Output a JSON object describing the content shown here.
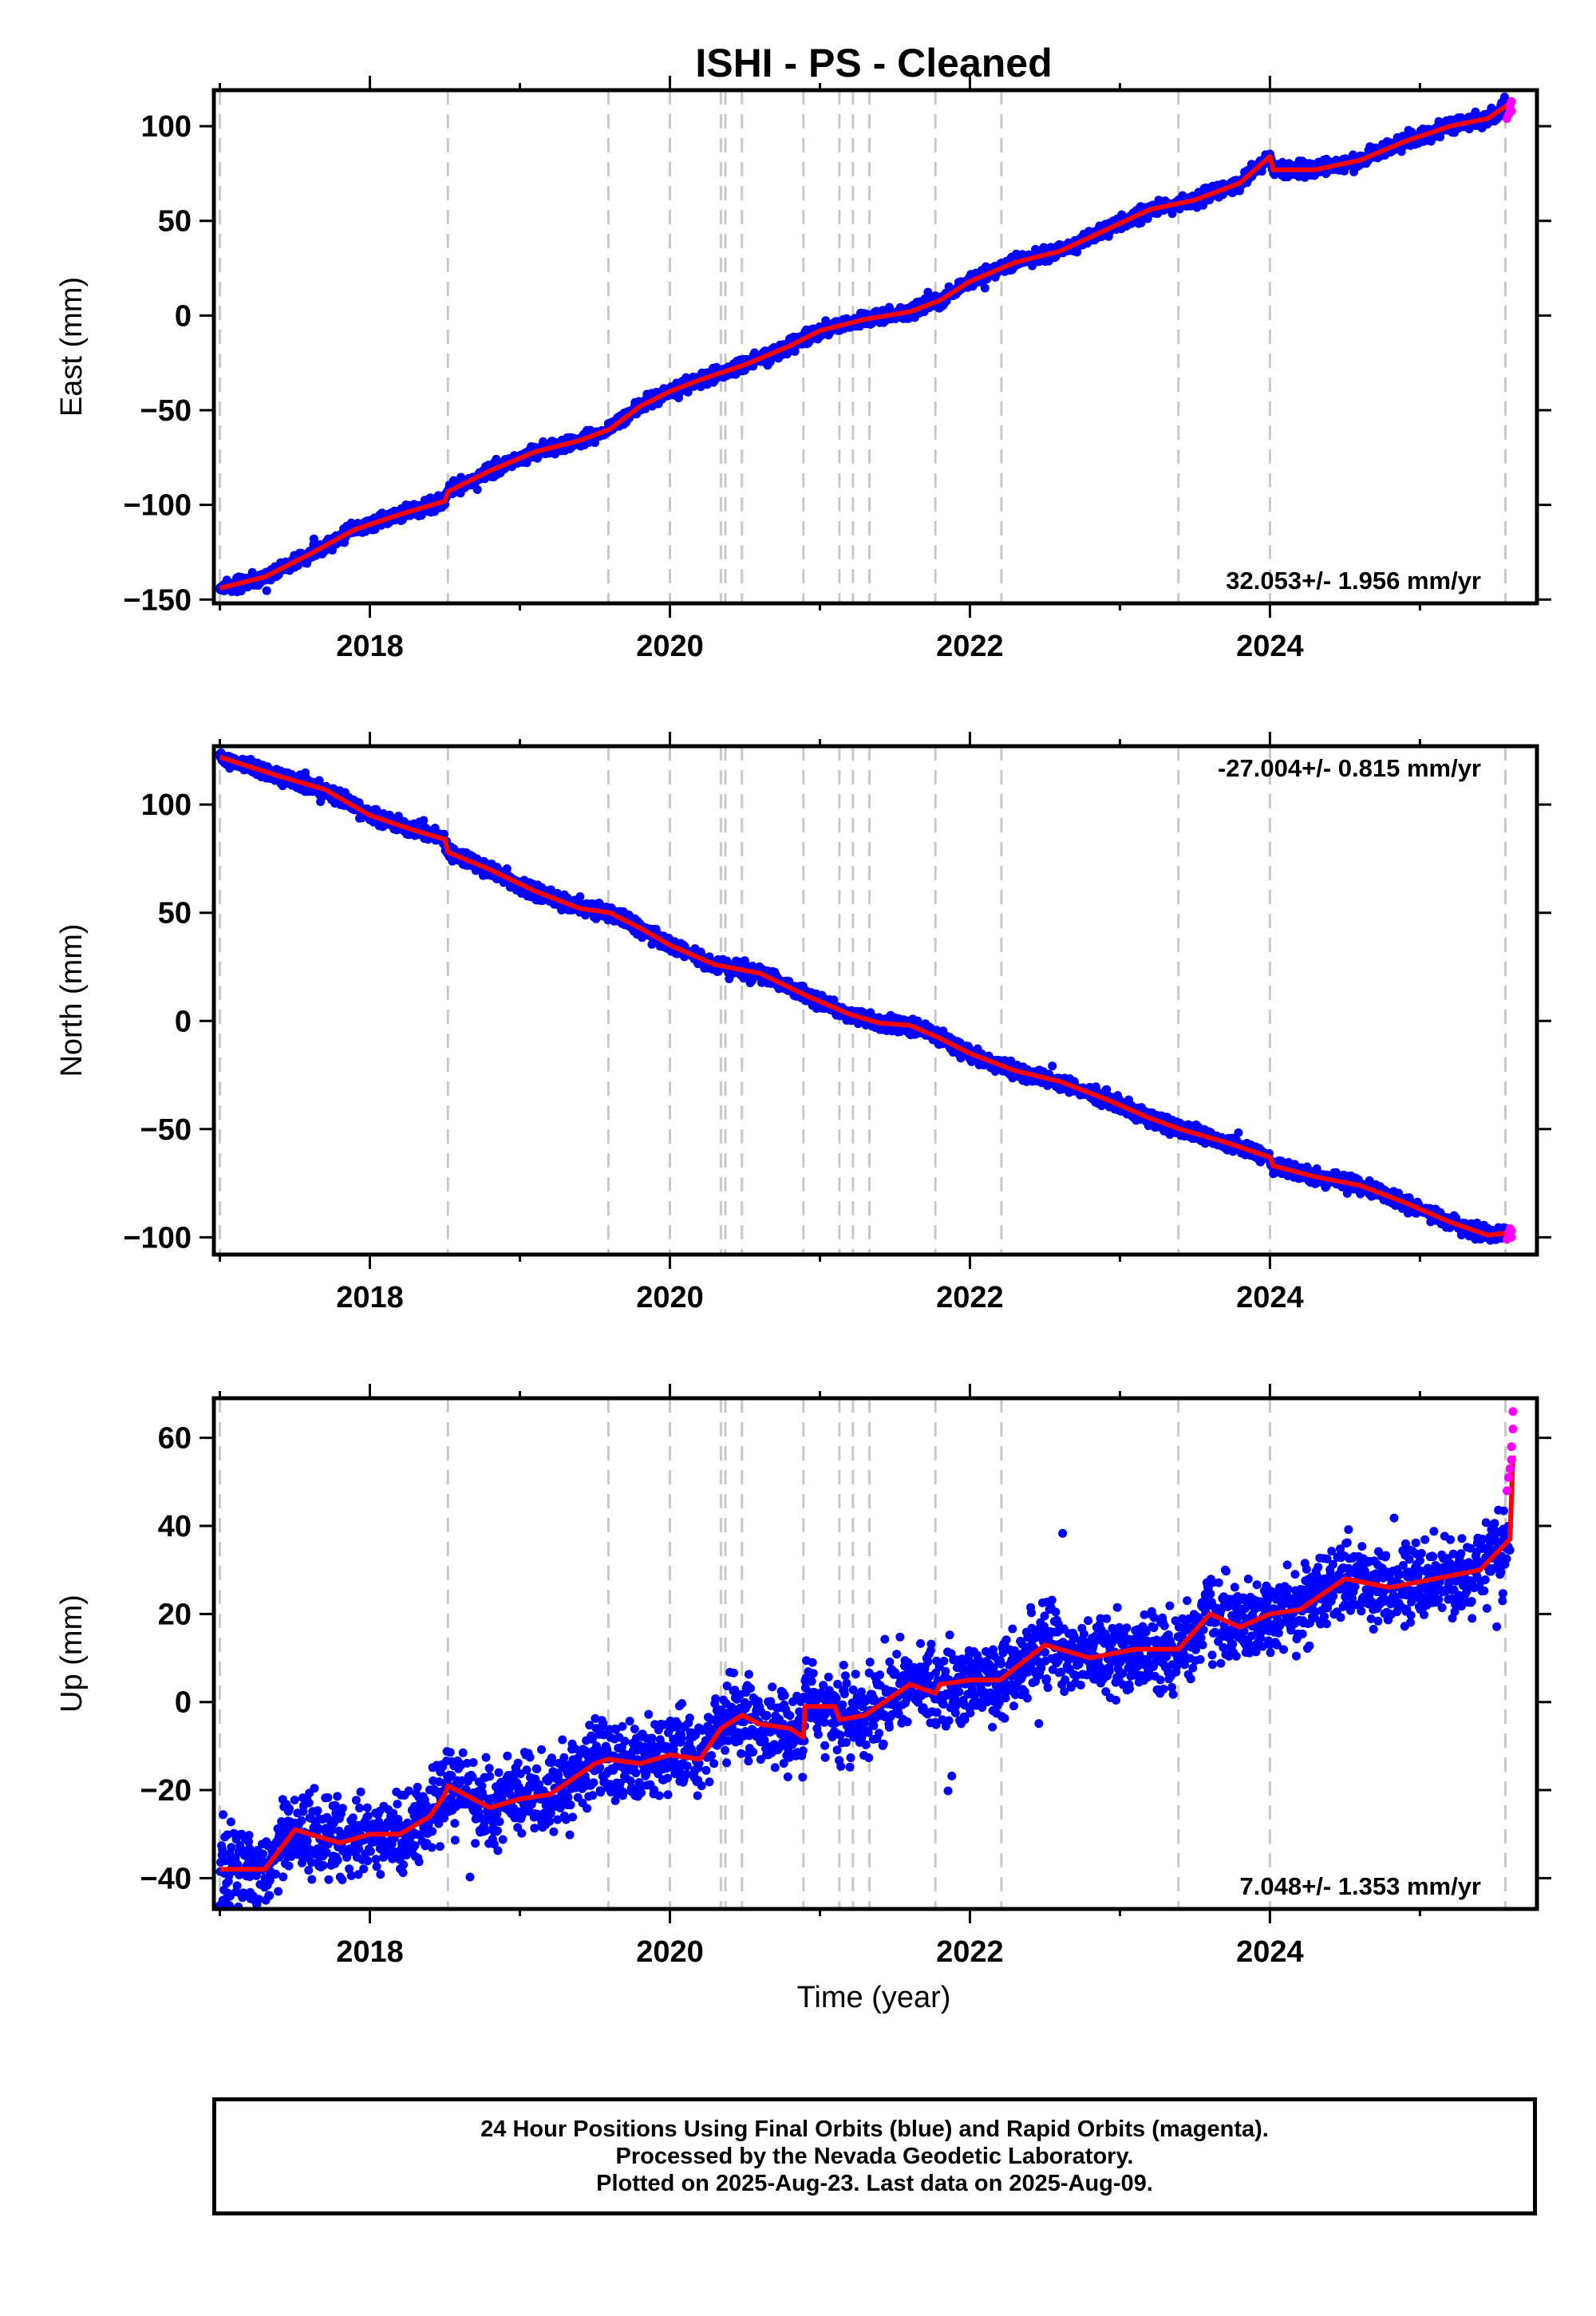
{
  "title": "ISHI  - PS - Cleaned",
  "xlabel": "Time (year)",
  "colors": {
    "final_orbits": "#0000ff",
    "rapid_orbits": "#ff00ff",
    "model_fit": "#ff0000",
    "event_lines": "#c8c8c8"
  },
  "footer": {
    "line1": "24 Hour Positions Using Final Orbits (blue) and Rapid Orbits (magenta).",
    "line2": "Processed by the Nevada Geodetic Laboratory.",
    "line3": "Plotted on 2025-Aug-23. Last data on 2025-Aug-09."
  },
  "chart_data": [
    {
      "type": "scatter",
      "component": "East",
      "ylabel": "East (mm)",
      "velocity_label": "32.053+/- 1.956 mm/yr",
      "velocity_label_position": "bottom-right",
      "xlim": [
        2016.96,
        2025.78
      ],
      "ylim": [
        -152,
        119
      ],
      "xticks": [
        2018,
        2020,
        2022,
        2024
      ],
      "yticks": [
        -150,
        -100,
        -50,
        0,
        50,
        100
      ],
      "event_lines": [
        2017.0,
        2018.52,
        2019.59,
        2020.0,
        2020.34,
        2020.37,
        2020.48,
        2020.89,
        2021.13,
        2021.22,
        2021.33,
        2021.77,
        2022.21,
        2023.39,
        2024.0,
        2025.57
      ],
      "fit_points": [
        [
          2017.0,
          -144
        ],
        [
          2017.3,
          -138
        ],
        [
          2017.6,
          -126
        ],
        [
          2017.9,
          -113
        ],
        [
          2018.2,
          -105
        ],
        [
          2018.5,
          -98
        ],
        [
          2018.52,
          -93
        ],
        [
          2018.8,
          -82
        ],
        [
          2019.1,
          -72
        ],
        [
          2019.4,
          -66
        ],
        [
          2019.6,
          -60
        ],
        [
          2019.8,
          -48
        ],
        [
          2020.0,
          -40
        ],
        [
          2020.2,
          -34
        ],
        [
          2020.5,
          -26
        ],
        [
          2020.8,
          -16
        ],
        [
          2021.0,
          -8
        ],
        [
          2021.3,
          -2
        ],
        [
          2021.6,
          2
        ],
        [
          2021.8,
          8
        ],
        [
          2022.0,
          18
        ],
        [
          2022.3,
          28
        ],
        [
          2022.6,
          34
        ],
        [
          2022.9,
          45
        ],
        [
          2023.2,
          56
        ],
        [
          2023.5,
          61
        ],
        [
          2023.8,
          70
        ],
        [
          2024.0,
          84
        ],
        [
          2024.02,
          77
        ],
        [
          2024.3,
          77
        ],
        [
          2024.6,
          82
        ],
        [
          2024.9,
          92
        ],
        [
          2025.2,
          100
        ],
        [
          2025.45,
          104
        ],
        [
          2025.6,
          112
        ]
      ],
      "noise_mm": 2.2,
      "rapid_points": [
        [
          2025.58,
          104
        ],
        [
          2025.59,
          106
        ],
        [
          2025.6,
          109
        ],
        [
          2025.6,
          111
        ],
        [
          2025.61,
          113
        ],
        [
          2025.61,
          108
        ]
      ]
    },
    {
      "type": "scatter",
      "component": "North",
      "ylabel": "North (mm)",
      "velocity_label": "-27.004+/- 0.815 mm/yr",
      "velocity_label_position": "top-right",
      "xlim": [
        2016.96,
        2025.78
      ],
      "ylim": [
        -108,
        127
      ],
      "xticks": [
        2018,
        2020,
        2022,
        2024
      ],
      "yticks": [
        -100,
        -50,
        0,
        50,
        100
      ],
      "event_lines": [
        2017.0,
        2018.52,
        2019.59,
        2020.0,
        2020.34,
        2020.37,
        2020.48,
        2020.89,
        2021.13,
        2021.22,
        2021.33,
        2021.77,
        2022.21,
        2023.39,
        2024.0,
        2025.57
      ],
      "fit_points": [
        [
          2017.0,
          122
        ],
        [
          2017.4,
          113
        ],
        [
          2017.7,
          107
        ],
        [
          2018.0,
          95
        ],
        [
          2018.3,
          88
        ],
        [
          2018.5,
          84
        ],
        [
          2018.52,
          78
        ],
        [
          2018.8,
          70
        ],
        [
          2019.1,
          60
        ],
        [
          2019.4,
          52
        ],
        [
          2019.6,
          50
        ],
        [
          2019.8,
          43
        ],
        [
          2020.0,
          35
        ],
        [
          2020.3,
          26
        ],
        [
          2020.6,
          22
        ],
        [
          2020.9,
          12
        ],
        [
          2021.2,
          3
        ],
        [
          2021.4,
          -1
        ],
        [
          2021.6,
          -2
        ],
        [
          2021.8,
          -8
        ],
        [
          2022.0,
          -15
        ],
        [
          2022.3,
          -23
        ],
        [
          2022.6,
          -28
        ],
        [
          2022.9,
          -36
        ],
        [
          2023.2,
          -45
        ],
        [
          2023.4,
          -50
        ],
        [
          2023.7,
          -56
        ],
        [
          2024.0,
          -63
        ],
        [
          2024.02,
          -67
        ],
        [
          2024.3,
          -72
        ],
        [
          2024.6,
          -76
        ],
        [
          2024.9,
          -84
        ],
        [
          2025.2,
          -93
        ],
        [
          2025.45,
          -99
        ],
        [
          2025.6,
          -98
        ]
      ],
      "noise_mm": 2.0,
      "rapid_points": [
        [
          2025.58,
          -101
        ],
        [
          2025.59,
          -98
        ],
        [
          2025.6,
          -96
        ],
        [
          2025.61,
          -100
        ],
        [
          2025.61,
          -97
        ]
      ]
    },
    {
      "type": "scatter",
      "component": "Up",
      "ylabel": "Up (mm)",
      "velocity_label": "7.048+/- 1.353 mm/yr",
      "velocity_label_position": "bottom-right",
      "xlim": [
        2016.96,
        2025.78
      ],
      "ylim": [
        -47,
        69
      ],
      "xticks": [
        2018,
        2020,
        2022,
        2024
      ],
      "yticks": [
        -40,
        -20,
        0,
        20,
        40,
        60
      ],
      "event_lines": [
        2017.0,
        2018.52,
        2019.59,
        2020.0,
        2020.34,
        2020.37,
        2020.48,
        2020.89,
        2021.13,
        2021.22,
        2021.33,
        2021.77,
        2022.21,
        2023.39,
        2024.0,
        2025.57
      ],
      "fit_points": [
        [
          2017.0,
          -38
        ],
        [
          2017.3,
          -38
        ],
        [
          2017.5,
          -29
        ],
        [
          2017.8,
          -32
        ],
        [
          2018.0,
          -30
        ],
        [
          2018.2,
          -30
        ],
        [
          2018.4,
          -26
        ],
        [
          2018.5,
          -21
        ],
        [
          2018.52,
          -19
        ],
        [
          2018.8,
          -24
        ],
        [
          2019.0,
          -22
        ],
        [
          2019.2,
          -21
        ],
        [
          2019.5,
          -14
        ],
        [
          2019.59,
          -13
        ],
        [
          2019.8,
          -14
        ],
        [
          2020.0,
          -12
        ],
        [
          2020.2,
          -13
        ],
        [
          2020.34,
          -6
        ],
        [
          2020.48,
          -3
        ],
        [
          2020.6,
          -5
        ],
        [
          2020.8,
          -6
        ],
        [
          2020.89,
          -8
        ],
        [
          2020.9,
          -1
        ],
        [
          2021.1,
          -1
        ],
        [
          2021.13,
          -4
        ],
        [
          2021.3,
          -3
        ],
        [
          2021.6,
          4
        ],
        [
          2021.77,
          2
        ],
        [
          2021.8,
          4
        ],
        [
          2022.0,
          5
        ],
        [
          2022.2,
          5
        ],
        [
          2022.5,
          13
        ],
        [
          2022.8,
          10
        ],
        [
          2023.1,
          12
        ],
        [
          2023.39,
          12
        ],
        [
          2023.6,
          20
        ],
        [
          2023.8,
          17
        ],
        [
          2024.0,
          20
        ],
        [
          2024.2,
          21
        ],
        [
          2024.5,
          28
        ],
        [
          2024.8,
          26
        ],
        [
          2025.1,
          28
        ],
        [
          2025.4,
          30
        ],
        [
          2025.6,
          37
        ],
        [
          2025.62,
          56
        ]
      ],
      "noise_mm": 5.5,
      "rapid_points": [
        [
          2025.58,
          48
        ],
        [
          2025.59,
          51
        ],
        [
          2025.6,
          53
        ],
        [
          2025.61,
          55
        ],
        [
          2025.61,
          58
        ],
        [
          2025.62,
          62
        ],
        [
          2025.62,
          66
        ]
      ]
    }
  ]
}
